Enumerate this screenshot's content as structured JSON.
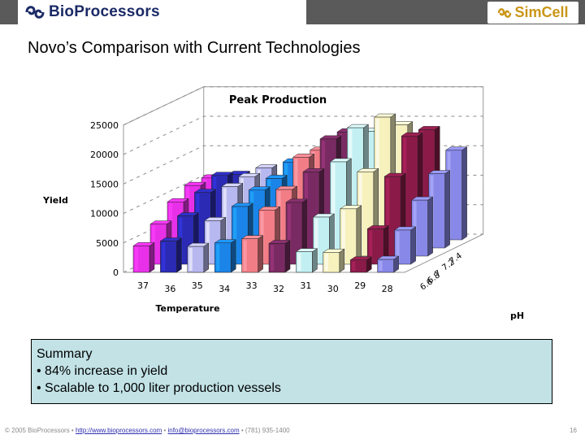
{
  "header": {
    "left_logo_text": "BioProcessors",
    "right_logo_text": "SimCell",
    "colors": {
      "bar": "#5a5a5a",
      "left_logo": "#1b2a66",
      "right_logo": "#c99617"
    }
  },
  "slide": {
    "title": "Novo’s Comparison with Current Technologies"
  },
  "chart_data": {
    "type": "bar",
    "title": "Peak Production",
    "ylabel": "Yield",
    "xlabel": "Temperature",
    "zlabel": "pH",
    "y_ticks": [
      "25000",
      "20000",
      "15000",
      "10000",
      "5000",
      "0"
    ],
    "ylim": [
      0,
      25000
    ],
    "x_ticks": [
      "37",
      "36",
      "35",
      "34",
      "33",
      "32",
      "31",
      "30",
      "29",
      "28"
    ],
    "z_ticks": [
      "7.4",
      "7.2",
      "7",
      "6.8",
      "6.6"
    ],
    "categories": [
      "37",
      "36",
      "35",
      "34",
      "33",
      "32",
      "31",
      "30",
      "29",
      "28"
    ],
    "series": [
      {
        "values": [
          4500,
          5300,
          4400,
          5000,
          5700,
          4900,
          3500,
          3400,
          2100,
          2200
        ]
      },
      {
        "values": [
          6800,
          8200,
          7400,
          9800,
          9200,
          10500,
          8000,
          9400,
          6000,
          5800
        ]
      },
      {
        "values": [
          9200,
          10800,
          11800,
          11200,
          11300,
          14300,
          16000,
          14300,
          13500,
          9500
        ]
      },
      {
        "values": [
          10600,
          12300,
          12100,
          11800,
          15400,
          18500,
          20400,
          22200,
          19000,
          12600
        ]
      },
      {
        "values": [
          10500,
          11100,
          12200,
          13200,
          15200,
          18300,
          18400,
          19500,
          18700,
          15200
        ]
      }
    ],
    "colors": [
      "#e830e8",
      "#2a2ab4",
      "#b8b8f0",
      "#1a84e8",
      "#f27d86",
      "#7a2a62",
      "#c2f0f2",
      "#f6f1bd",
      "#8a1b49",
      "#8888e8"
    ],
    "grid": true
  },
  "summary": {
    "heading": "Summary",
    "bullets": [
      "• 84% increase in yield",
      "• Scalable to 1,000 liter production vessels"
    ]
  },
  "footer": {
    "copyright": "© 2005 BioProcessors • ",
    "link1": "http://www.bioprocessors.com",
    "sep": " • ",
    "link2": "info@bioprocessors.com",
    "phone": " • (781) 935-1400",
    "page": "16"
  }
}
